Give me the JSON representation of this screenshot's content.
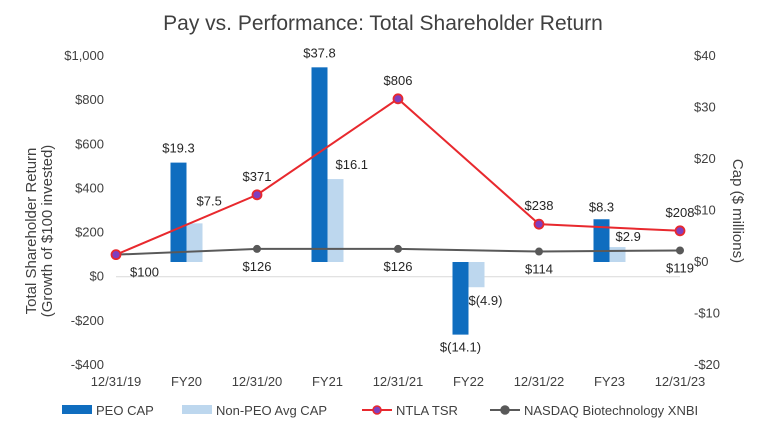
{
  "chart_data": {
    "type": "bar+line",
    "title": "Pay vs. Performance: Total Shareholder Return",
    "categories": [
      "12/31/19",
      "FY20",
      "12/31/20",
      "FY21",
      "12/31/21",
      "FY22",
      "12/31/22",
      "FY23",
      "12/31/23"
    ],
    "left_axis": {
      "label_line1": "Total Shareholder Return",
      "label_line2": "(Growth of $100 invested)",
      "range": [
        -400,
        1000
      ],
      "ticks": [
        1000,
        800,
        600,
        400,
        200,
        0,
        -200,
        -400
      ],
      "tick_labels": [
        "$1,000",
        "$800",
        "$600",
        "$400",
        "$200",
        "$0",
        "-$200",
        "-$400"
      ]
    },
    "right_axis": {
      "label": "Cap ($ millions)",
      "range": [
        -20,
        40
      ],
      "ticks": [
        40,
        30,
        20,
        10,
        0,
        -10,
        -20
      ],
      "tick_labels": [
        "$40",
        "$30",
        "$20",
        "$10",
        "$0",
        "-$10",
        "-$20"
      ]
    },
    "bar_series": [
      {
        "name": "PEO CAP",
        "color": "#0f6dbf",
        "axis": "right",
        "points": [
          {
            "category": "FY20",
            "value": 19.3,
            "label": "$19.3"
          },
          {
            "category": "FY21",
            "value": 37.8,
            "label": "$37.8"
          },
          {
            "category": "FY22",
            "value": -14.1,
            "label": "$(14.1)"
          },
          {
            "category": "FY23",
            "value": 8.3,
            "label": "$8.3"
          }
        ]
      },
      {
        "name": "Non-PEO Avg CAP",
        "color": "#bdd7ee",
        "axis": "right",
        "points": [
          {
            "category": "FY20",
            "value": 7.5,
            "label": "$7.5"
          },
          {
            "category": "FY21",
            "value": 16.1,
            "label": "$16.1"
          },
          {
            "category": "FY22",
            "value": -4.9,
            "label": "$(4.9)"
          },
          {
            "category": "FY23",
            "value": 2.9,
            "label": "$2.9"
          }
        ]
      }
    ],
    "line_series": [
      {
        "name": "NTLA TSR",
        "color": "#e8292e",
        "marker_fill": "#7f3fbf",
        "axis": "left",
        "points": [
          {
            "category": "12/31/19",
            "value": 100,
            "label": ""
          },
          {
            "category": "12/31/20",
            "value": 371,
            "label": "$371"
          },
          {
            "category": "12/31/21",
            "value": 806,
            "label": "$806"
          },
          {
            "category": "12/31/22",
            "value": 238,
            "label": "$238"
          },
          {
            "category": "12/31/23",
            "value": 208,
            "label": "$208"
          }
        ]
      },
      {
        "name": "NASDAQ Biotechnology XNBI",
        "color": "#595959",
        "marker_fill": "#595959",
        "axis": "left",
        "points": [
          {
            "category": "12/31/19",
            "value": 100,
            "label": "$100"
          },
          {
            "category": "12/31/20",
            "value": 126,
            "label": "$126"
          },
          {
            "category": "12/31/21",
            "value": 126,
            "label": "$126"
          },
          {
            "category": "12/31/22",
            "value": 114,
            "label": "$114"
          },
          {
            "category": "12/31/23",
            "value": 119,
            "label": "$119"
          }
        ]
      }
    ],
    "legend": [
      {
        "name": "PEO CAP",
        "kind": "bar",
        "color": "#0f6dbf"
      },
      {
        "name": "Non-PEO Avg CAP",
        "kind": "bar",
        "color": "#bdd7ee"
      },
      {
        "name": "NTLA TSR",
        "kind": "line",
        "color": "#e8292e",
        "marker_fill": "#7f3fbf"
      },
      {
        "name": "NASDAQ Biotechnology XNBI",
        "kind": "line",
        "color": "#595959",
        "marker_fill": "#595959"
      }
    ],
    "legend_position": "bottom",
    "grid": false
  }
}
